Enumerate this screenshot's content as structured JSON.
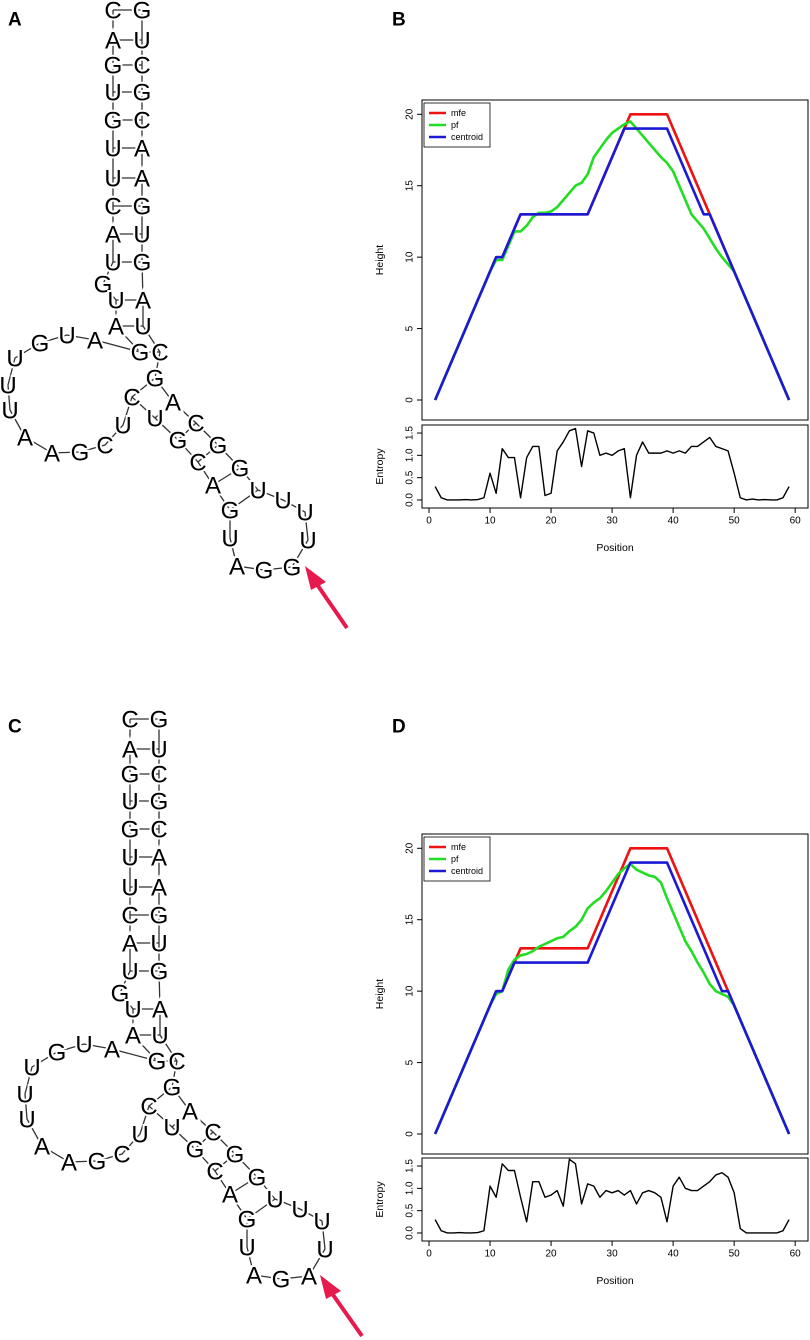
{
  "figure": {
    "panel_labels": [
      "A",
      "B",
      "C",
      "D"
    ]
  },
  "structures": [
    {
      "letters": [
        "C",
        "A",
        "G",
        "U",
        "G",
        "U",
        "U",
        "C",
        "A",
        "U",
        "G",
        "U",
        "A",
        "G",
        "A",
        "U",
        "G",
        "U",
        "U",
        "U",
        "A",
        "A",
        "G",
        "C",
        "U",
        "C",
        "U",
        "G",
        "C",
        "A",
        "G",
        "U",
        "A",
        "G",
        "G",
        "U",
        "U",
        "U",
        "U",
        "G",
        "G",
        "C",
        "A",
        "G",
        "C",
        "U",
        "A",
        "G",
        "U",
        "G",
        "A",
        "A",
        "C",
        "G",
        "C",
        "U",
        "G"
      ]
    },
    {
      "letters": [
        "C",
        "A",
        "G",
        "U",
        "G",
        "U",
        "U",
        "C",
        "A",
        "U",
        "G",
        "U",
        "A",
        "G",
        "A",
        "U",
        "G",
        "U",
        "U",
        "U",
        "A",
        "A",
        "G",
        "C",
        "U",
        "C",
        "U",
        "G",
        "C",
        "A",
        "G",
        "U",
        "A",
        "G",
        "A",
        "U",
        "U",
        "U",
        "U",
        "G",
        "G",
        "C",
        "A",
        "G",
        "C",
        "U",
        "A",
        "G",
        "U",
        "G",
        "A",
        "A",
        "C",
        "G",
        "C",
        "U",
        "G"
      ]
    }
  ],
  "chart_data": [
    {
      "type": "line",
      "ylabel": "Height",
      "legend": "top-left",
      "xlim": [
        -1.15,
        62.1
      ],
      "ylim": [
        -1.4,
        21
      ],
      "yticks": [
        0,
        5,
        10,
        15,
        20
      ],
      "x": [
        1,
        2,
        3,
        4,
        5,
        6,
        7,
        8,
        9,
        10,
        11,
        12,
        13,
        14,
        15,
        16,
        17,
        18,
        19,
        20,
        21,
        22,
        23,
        24,
        25,
        26,
        27,
        28,
        29,
        30,
        31,
        32,
        33,
        34,
        35,
        36,
        37,
        38,
        39,
        40,
        41,
        42,
        43,
        44,
        45,
        46,
        47,
        48,
        49,
        50,
        51,
        52,
        53,
        54,
        55,
        56,
        57,
        58,
        59
      ],
      "series": [
        {
          "name": "mfe",
          "color": "#ee1111",
          "values": [
            0,
            1,
            2,
            3,
            4,
            5,
            6,
            7,
            8,
            9,
            10,
            10,
            11,
            12,
            13,
            13,
            13,
            13,
            13,
            13,
            13,
            13,
            13,
            13,
            13,
            13,
            14,
            15,
            16,
            17,
            18,
            19,
            20,
            20,
            20,
            20,
            20,
            20,
            20,
            19,
            18,
            17,
            16,
            15,
            14,
            13,
            12,
            11,
            10,
            9,
            8,
            7,
            6,
            5,
            4,
            3,
            2,
            1,
            0
          ]
        },
        {
          "name": "pf",
          "color": "#22dd22",
          "values": [
            0,
            1,
            2,
            3,
            4,
            5,
            6,
            7,
            8,
            9,
            9.8,
            9.8,
            10.8,
            11.8,
            11.8,
            12.2,
            12.8,
            13.1,
            13.1,
            13.2,
            13.5,
            14,
            14.5,
            15,
            15.2,
            15.8,
            17,
            17.6,
            18.2,
            18.7,
            19,
            19.3,
            19.5,
            19,
            18.5,
            18,
            17.5,
            17,
            16.6,
            16,
            15,
            14,
            13,
            12.5,
            12,
            11.3,
            10.6,
            10,
            9.5,
            9,
            8,
            7,
            6,
            5,
            4,
            3,
            2,
            1,
            0
          ]
        },
        {
          "name": "centroid",
          "color": "#1a1ad6",
          "values": [
            0,
            1,
            2,
            3,
            4,
            5,
            6,
            7,
            8,
            9,
            10,
            10,
            11,
            12,
            13,
            13,
            13,
            13,
            13,
            13,
            13,
            13,
            13,
            13,
            13,
            13,
            14,
            15,
            16,
            17,
            18,
            19,
            19,
            19,
            19,
            19,
            19,
            19,
            19,
            18,
            17,
            16,
            15,
            14,
            13,
            13,
            12,
            11,
            10,
            9,
            8,
            7,
            6,
            5,
            4,
            3,
            2,
            1,
            0
          ]
        }
      ]
    },
    {
      "type": "line",
      "ylabel": "Entropy",
      "xlabel": "Position",
      "color": "#000000",
      "xlim": [
        -1.15,
        62.1
      ],
      "ylim": [
        -0.18,
        1.68
      ],
      "yticks": [
        {
          "value": 0,
          "label": "0.0"
        },
        {
          "value": 0.5,
          "label": "0.5"
        },
        {
          "value": 1,
          "label": "1.0"
        },
        {
          "value": 1.5,
          "label": "1.5"
        }
      ],
      "xticks": [
        0,
        10,
        20,
        30,
        40,
        50,
        60
      ],
      "x": [
        1,
        2,
        3,
        4,
        5,
        6,
        7,
        8,
        9,
        10,
        11,
        12,
        13,
        14,
        15,
        16,
        17,
        18,
        19,
        20,
        21,
        22,
        23,
        24,
        25,
        26,
        27,
        28,
        29,
        30,
        31,
        32,
        33,
        34,
        35,
        36,
        37,
        38,
        39,
        40,
        41,
        42,
        43,
        44,
        45,
        46,
        47,
        48,
        49,
        50,
        51,
        52,
        53,
        54,
        55,
        56,
        57,
        58,
        59
      ],
      "values": [
        0.3,
        0.05,
        0,
        0,
        0,
        0.01,
        0,
        0.01,
        0.05,
        0.6,
        0.15,
        1.15,
        0.95,
        0.95,
        0.05,
        0.95,
        1.2,
        1.2,
        0.1,
        0.15,
        1.1,
        1.3,
        1.55,
        1.6,
        0.75,
        1.55,
        1.5,
        1,
        1.05,
        1,
        1.1,
        1.15,
        0.05,
        1,
        1.3,
        1.05,
        1.05,
        1.05,
        1.1,
        1.05,
        1.1,
        1.05,
        1.2,
        1.2,
        1.3,
        1.4,
        1.2,
        1.15,
        1.1,
        0.6,
        0.05,
        0,
        0.02,
        0,
        0.01,
        0,
        0,
        0.05,
        0.3
      ]
    },
    {
      "type": "line",
      "ylabel": "Height",
      "legend": "top-left",
      "xlim": [
        -1.15,
        62.1
      ],
      "ylim": [
        -1.4,
        21
      ],
      "yticks": [
        0,
        5,
        10,
        15,
        20
      ],
      "x": [
        1,
        2,
        3,
        4,
        5,
        6,
        7,
        8,
        9,
        10,
        11,
        12,
        13,
        14,
        15,
        16,
        17,
        18,
        19,
        20,
        21,
        22,
        23,
        24,
        25,
        26,
        27,
        28,
        29,
        30,
        31,
        32,
        33,
        34,
        35,
        36,
        37,
        38,
        39,
        40,
        41,
        42,
        43,
        44,
        45,
        46,
        47,
        48,
        49,
        50,
        51,
        52,
        53,
        54,
        55,
        56,
        57,
        58,
        59
      ],
      "series": [
        {
          "name": "mfe",
          "color": "#ee1111",
          "values": [
            0,
            1,
            2,
            3,
            4,
            5,
            6,
            7,
            8,
            9,
            10,
            10,
            11,
            12,
            13,
            13,
            13,
            13,
            13,
            13,
            13,
            13,
            13,
            13,
            13,
            13,
            14,
            15,
            16,
            17,
            18,
            19,
            20,
            20,
            20,
            20,
            20,
            20,
            20,
            19,
            18,
            17,
            16,
            15,
            14,
            13,
            12,
            11,
            10,
            9,
            8,
            7,
            6,
            5,
            4,
            3,
            2,
            1,
            0
          ]
        },
        {
          "name": "pf",
          "color": "#22dd22",
          "values": [
            0,
            1,
            2,
            3,
            4,
            5,
            6,
            7,
            8,
            9,
            9.8,
            10,
            11.5,
            12.2,
            12.5,
            12.6,
            12.8,
            13.1,
            13.3,
            13.5,
            13.7,
            13.8,
            14.2,
            14.5,
            15,
            15.8,
            16.2,
            16.5,
            17,
            17.6,
            18.2,
            18.6,
            18.9,
            18.5,
            18.3,
            18.1,
            18,
            17.6,
            16.5,
            15.5,
            14.5,
            13.5,
            12.8,
            12,
            11.3,
            10.5,
            10,
            9.8,
            9.6,
            9,
            8,
            7,
            6,
            5,
            4,
            3,
            2,
            1,
            0
          ]
        },
        {
          "name": "centroid",
          "color": "#1a1ad6",
          "values": [
            0,
            1,
            2,
            3,
            4,
            5,
            6,
            7,
            8,
            9,
            10,
            10,
            11,
            12,
            12,
            12,
            12,
            12,
            12,
            12,
            12,
            12,
            12,
            12,
            12,
            12,
            13,
            14,
            15,
            16,
            17,
            18,
            19,
            19,
            19,
            19,
            19,
            19,
            19,
            18,
            17,
            16,
            15,
            14,
            13,
            12,
            11,
            10,
            10,
            9,
            8,
            7,
            6,
            5,
            4,
            3,
            2,
            1,
            0
          ]
        }
      ]
    },
    {
      "type": "line",
      "ylabel": "Entropy",
      "xlabel": "Position",
      "color": "#000000",
      "xlim": [
        -1.15,
        62.1
      ],
      "ylim": [
        -0.18,
        1.68
      ],
      "yticks": [
        {
          "value": 0,
          "label": "0.0"
        },
        {
          "value": 0.5,
          "label": "0.5"
        },
        {
          "value": 1,
          "label": "1.0"
        },
        {
          "value": 1.5,
          "label": "1.5"
        }
      ],
      "xticks": [
        0,
        10,
        20,
        30,
        40,
        50,
        60
      ],
      "x": [
        1,
        2,
        3,
        4,
        5,
        6,
        7,
        8,
        9,
        10,
        11,
        12,
        13,
        14,
        15,
        16,
        17,
        18,
        19,
        20,
        21,
        22,
        23,
        24,
        25,
        26,
        27,
        28,
        29,
        30,
        31,
        32,
        33,
        34,
        35,
        36,
        37,
        38,
        39,
        40,
        41,
        42,
        43,
        44,
        45,
        46,
        47,
        48,
        49,
        50,
        51,
        52,
        53,
        54,
        55,
        56,
        57,
        58,
        59
      ],
      "values": [
        0.3,
        0.05,
        0,
        0,
        0.01,
        0,
        0,
        0.01,
        0.05,
        1.05,
        0.8,
        1.55,
        1.4,
        1.4,
        0.8,
        0.25,
        1.15,
        1.15,
        0.8,
        0.85,
        0.95,
        0.6,
        1.65,
        1.55,
        0.65,
        1.1,
        1.05,
        0.8,
        0.95,
        0.9,
        0.95,
        0.85,
        0.95,
        0.65,
        0.9,
        0.95,
        0.9,
        0.8,
        0.25,
        1.05,
        1.25,
        1,
        0.95,
        0.95,
        1.05,
        1.15,
        1.3,
        1.35,
        1.25,
        0.9,
        0.1,
        0,
        0,
        0,
        0,
        0,
        0,
        0.05,
        0.3
      ]
    }
  ]
}
